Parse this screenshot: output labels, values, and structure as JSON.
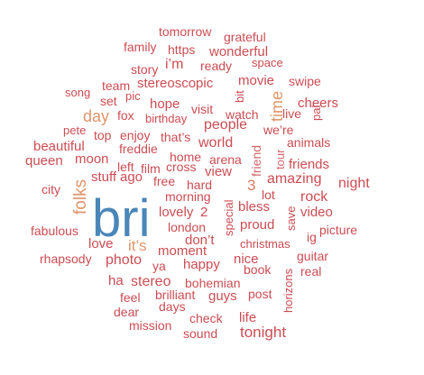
{
  "colors": {
    "focus_word": "#4a86b8",
    "orange": "#e0956a",
    "red": "#cc4c53",
    "mid": "#d2666a",
    "orange_red": "#dd7a63"
  },
  "words": [
    {
      "text": "bri",
      "color": "focus_word"
    },
    {
      "text": "folks",
      "color": "orange"
    },
    {
      "text": "day",
      "color": "orange"
    },
    {
      "text": "time",
      "color": "orange"
    },
    {
      "text": "it’s",
      "color": "orange"
    },
    {
      "text": "3",
      "color": "orange_red"
    },
    {
      "text": "friend",
      "color": "mid"
    },
    {
      "text": "tour",
      "color": "mid"
    },
    {
      "text": "tomorrow",
      "color": "red"
    },
    {
      "text": "grateful",
      "color": "red"
    },
    {
      "text": "family",
      "color": "red"
    },
    {
      "text": "https",
      "color": "red"
    },
    {
      "text": "wonderful",
      "color": "red"
    },
    {
      "text": "story",
      "color": "red"
    },
    {
      "text": "i’m",
      "color": "red"
    },
    {
      "text": "ready",
      "color": "red"
    },
    {
      "text": "space",
      "color": "red"
    },
    {
      "text": "team",
      "color": "red"
    },
    {
      "text": "stereoscopic",
      "color": "red"
    },
    {
      "text": "movie",
      "color": "red"
    },
    {
      "text": "swipe",
      "color": "red"
    },
    {
      "text": "song",
      "color": "red"
    },
    {
      "text": "pic",
      "color": "red"
    },
    {
      "text": "bit",
      "color": "red"
    },
    {
      "text": "set",
      "color": "red"
    },
    {
      "text": "hope",
      "color": "red"
    },
    {
      "text": "visit",
      "color": "red"
    },
    {
      "text": "cheers",
      "color": "red"
    },
    {
      "text": "fox",
      "color": "red"
    },
    {
      "text": "birthday",
      "color": "red"
    },
    {
      "text": "watch",
      "color": "red"
    },
    {
      "text": "live",
      "color": "red"
    },
    {
      "text": "pal",
      "color": "red"
    },
    {
      "text": "pete",
      "color": "red"
    },
    {
      "text": "people",
      "color": "red"
    },
    {
      "text": "we’re",
      "color": "red"
    },
    {
      "text": "top",
      "color": "red"
    },
    {
      "text": "enjoy",
      "color": "red"
    },
    {
      "text": "that’s",
      "color": "red"
    },
    {
      "text": "beautiful",
      "color": "red"
    },
    {
      "text": "freddie",
      "color": "red"
    },
    {
      "text": "world",
      "color": "red"
    },
    {
      "text": "animals",
      "color": "red"
    },
    {
      "text": "queen",
      "color": "red"
    },
    {
      "text": "moon",
      "color": "red"
    },
    {
      "text": "home",
      "color": "red"
    },
    {
      "text": "arena",
      "color": "red"
    },
    {
      "text": "left",
      "color": "red"
    },
    {
      "text": "film",
      "color": "red"
    },
    {
      "text": "cross",
      "color": "red"
    },
    {
      "text": "view",
      "color": "red"
    },
    {
      "text": "friends",
      "color": "red"
    },
    {
      "text": "stuff",
      "color": "red"
    },
    {
      "text": "ago",
      "color": "red"
    },
    {
      "text": "free",
      "color": "red"
    },
    {
      "text": "hard",
      "color": "red"
    },
    {
      "text": "amazing",
      "color": "red"
    },
    {
      "text": "night",
      "color": "red"
    },
    {
      "text": "city",
      "color": "red"
    },
    {
      "text": "morning",
      "color": "red"
    },
    {
      "text": "bless",
      "color": "red"
    },
    {
      "text": "lot",
      "color": "red"
    },
    {
      "text": "rock",
      "color": "red"
    },
    {
      "text": "lovely",
      "color": "red"
    },
    {
      "text": "2",
      "color": "red"
    },
    {
      "text": "special",
      "color": "red"
    },
    {
      "text": "video",
      "color": "red"
    },
    {
      "text": "save",
      "color": "red"
    },
    {
      "text": "fabulous",
      "color": "red"
    },
    {
      "text": "london",
      "color": "red"
    },
    {
      "text": "proud",
      "color": "red"
    },
    {
      "text": "ig",
      "color": "red"
    },
    {
      "text": "picture",
      "color": "red"
    },
    {
      "text": "don’t",
      "color": "red"
    },
    {
      "text": "christmas",
      "color": "red"
    },
    {
      "text": "love",
      "color": "red"
    },
    {
      "text": "moment",
      "color": "red"
    },
    {
      "text": "rhapsody",
      "color": "red"
    },
    {
      "text": "photo",
      "color": "red"
    },
    {
      "text": "ya",
      "color": "red"
    },
    {
      "text": "happy",
      "color": "red"
    },
    {
      "text": "nice",
      "color": "red"
    },
    {
      "text": "guitar",
      "color": "red"
    },
    {
      "text": "book",
      "color": "red"
    },
    {
      "text": "real",
      "color": "red"
    },
    {
      "text": "horizons",
      "color": "red"
    },
    {
      "text": "ha",
      "color": "red"
    },
    {
      "text": "stereo",
      "color": "red"
    },
    {
      "text": "bohemian",
      "color": "red"
    },
    {
      "text": "feel",
      "color": "red"
    },
    {
      "text": "brilliant",
      "color": "red"
    },
    {
      "text": "guys",
      "color": "red"
    },
    {
      "text": "post",
      "color": "red"
    },
    {
      "text": "dear",
      "color": "red"
    },
    {
      "text": "days",
      "color": "red"
    },
    {
      "text": "check",
      "color": "red"
    },
    {
      "text": "life",
      "color": "red"
    },
    {
      "text": "mission",
      "color": "red"
    },
    {
      "text": "sound",
      "color": "red"
    },
    {
      "text": "tonight",
      "color": "red"
    }
  ]
}
